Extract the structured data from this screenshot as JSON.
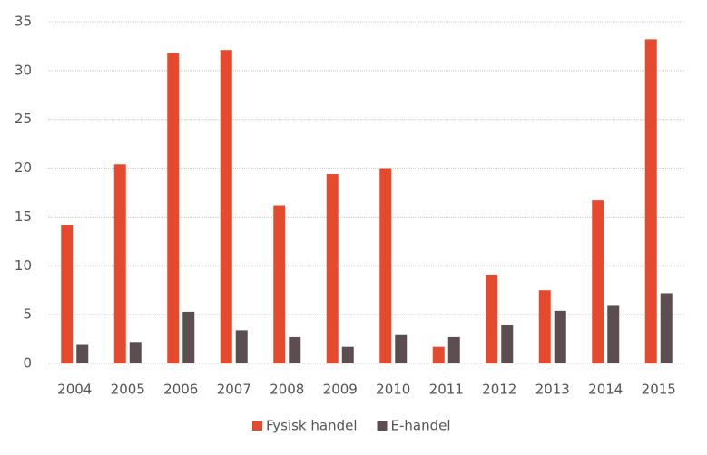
{
  "chart_data": {
    "type": "bar",
    "categories": [
      "2004",
      "2005",
      "2006",
      "2007",
      "2008",
      "2009",
      "2010",
      "2011",
      "2012",
      "2013",
      "2014",
      "2015"
    ],
    "series": [
      {
        "name": "Fysisk handel",
        "color": "#e64a2e",
        "values": [
          14.2,
          20.4,
          31.8,
          32.1,
          16.2,
          19.4,
          20.0,
          1.7,
          9.1,
          7.5,
          16.7,
          33.2
        ]
      },
      {
        "name": "E-handel",
        "color": "#5b4d50",
        "values": [
          1.9,
          2.2,
          5.3,
          3.4,
          2.7,
          1.7,
          2.9,
          2.7,
          3.9,
          5.4,
          5.9,
          7.2
        ]
      }
    ],
    "ylim": [
      0,
      35
    ],
    "yticks": [
      0,
      5,
      10,
      15,
      20,
      25,
      30,
      35
    ],
    "grid": true,
    "legend": "bottom"
  }
}
